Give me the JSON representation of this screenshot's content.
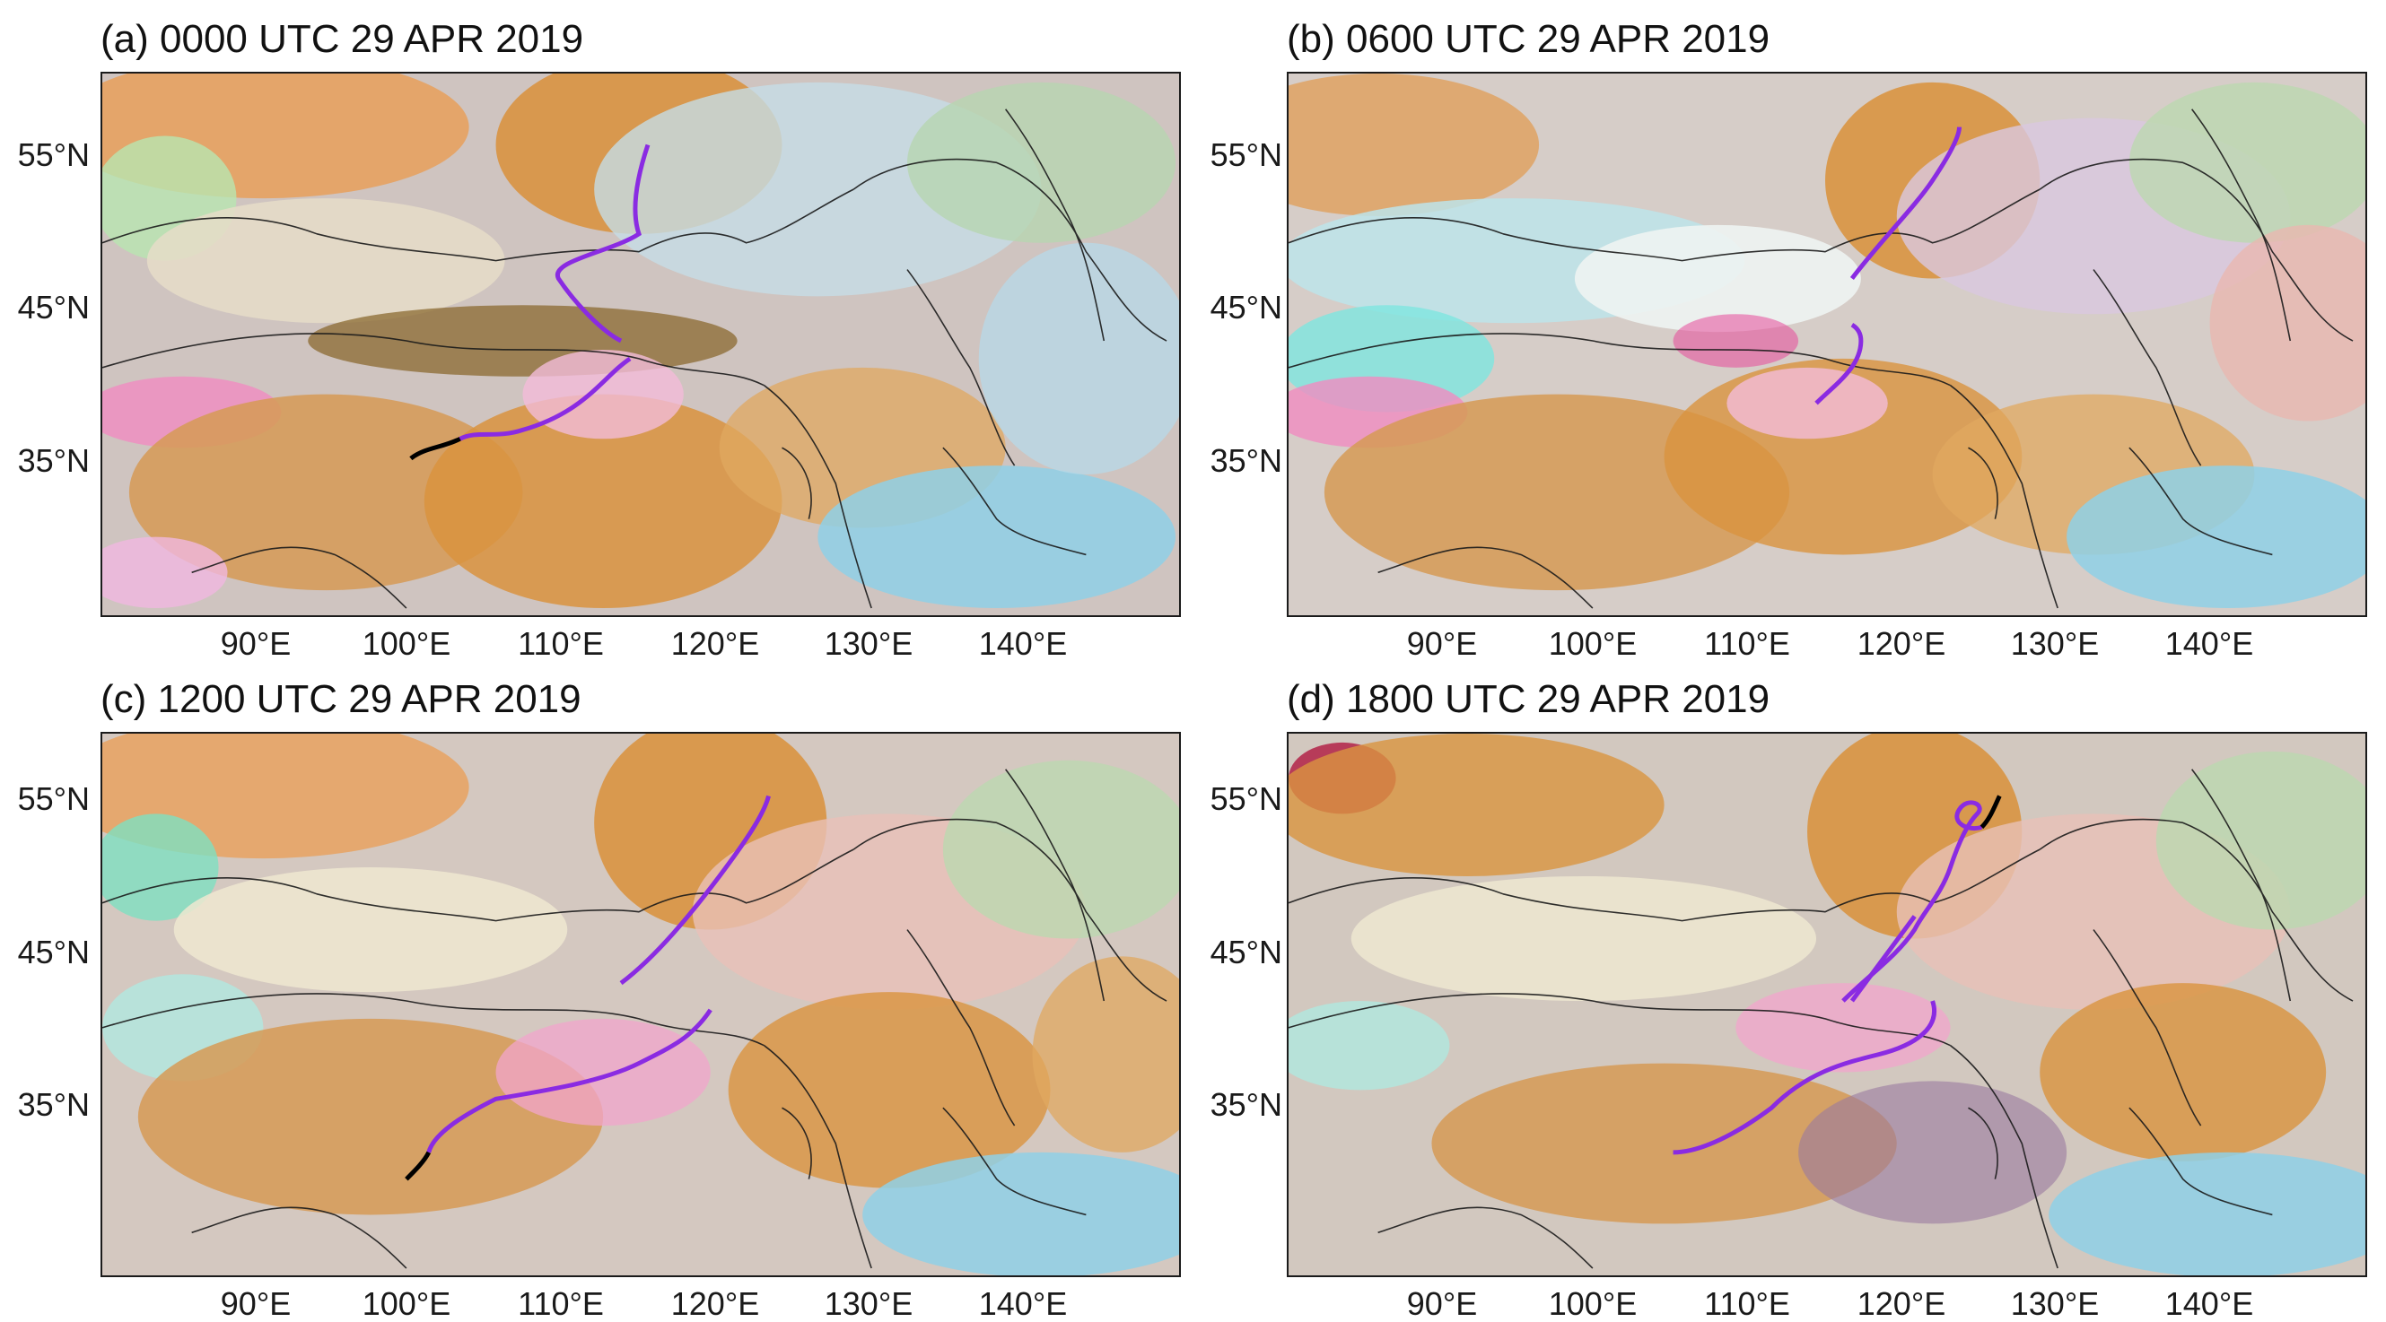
{
  "figure": {
    "panels": [
      {
        "id": "a",
        "title": "(a) 0000 UTC 29 APR 2019"
      },
      {
        "id": "b",
        "title": "(b) 0600 UTC 29 APR 2019"
      },
      {
        "id": "c",
        "title": "(c) 1200 UTC 29 APR 2019"
      },
      {
        "id": "d",
        "title": "(d) 1800 UTC 29 APR 2019"
      }
    ],
    "lat_labels": [
      "55°N",
      "45°N",
      "35°N"
    ],
    "lon_labels": [
      "90°E",
      "100°E",
      "110°E",
      "120°E",
      "130°E",
      "140°E"
    ],
    "colors": {
      "front_line": "#8a2be2",
      "trough_line": "#000000",
      "boundary": "#1a1a1a"
    },
    "icons": {
      "map": "false-color-satellite-rgb-imagery"
    }
  }
}
